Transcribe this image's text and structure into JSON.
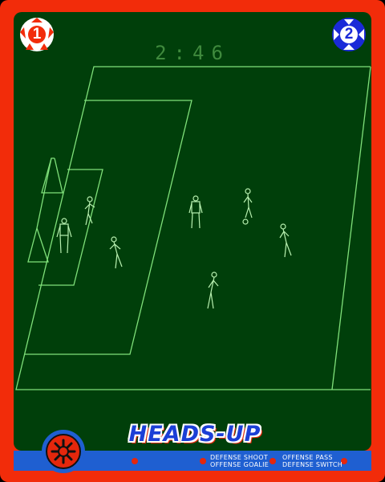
{
  "game": {
    "title": "HEADS-UP",
    "timer": "2:46"
  },
  "players": [
    {
      "number": "1",
      "color": "#f22c0a"
    },
    {
      "number": "2",
      "color": "#1a2ad8"
    }
  ],
  "controls": {
    "defense_shoot": "DEFENSE SHOOT",
    "offense_goalie": "OFFENSE GOALIE",
    "offense_pass": "OFFENSE PASS",
    "defense_switch": "DEFENSE SWITCH"
  },
  "colors": {
    "frame": "#f22c0a",
    "field": "#003f0a",
    "lines": "#7fe07a",
    "bar": "#1f5fd1"
  }
}
